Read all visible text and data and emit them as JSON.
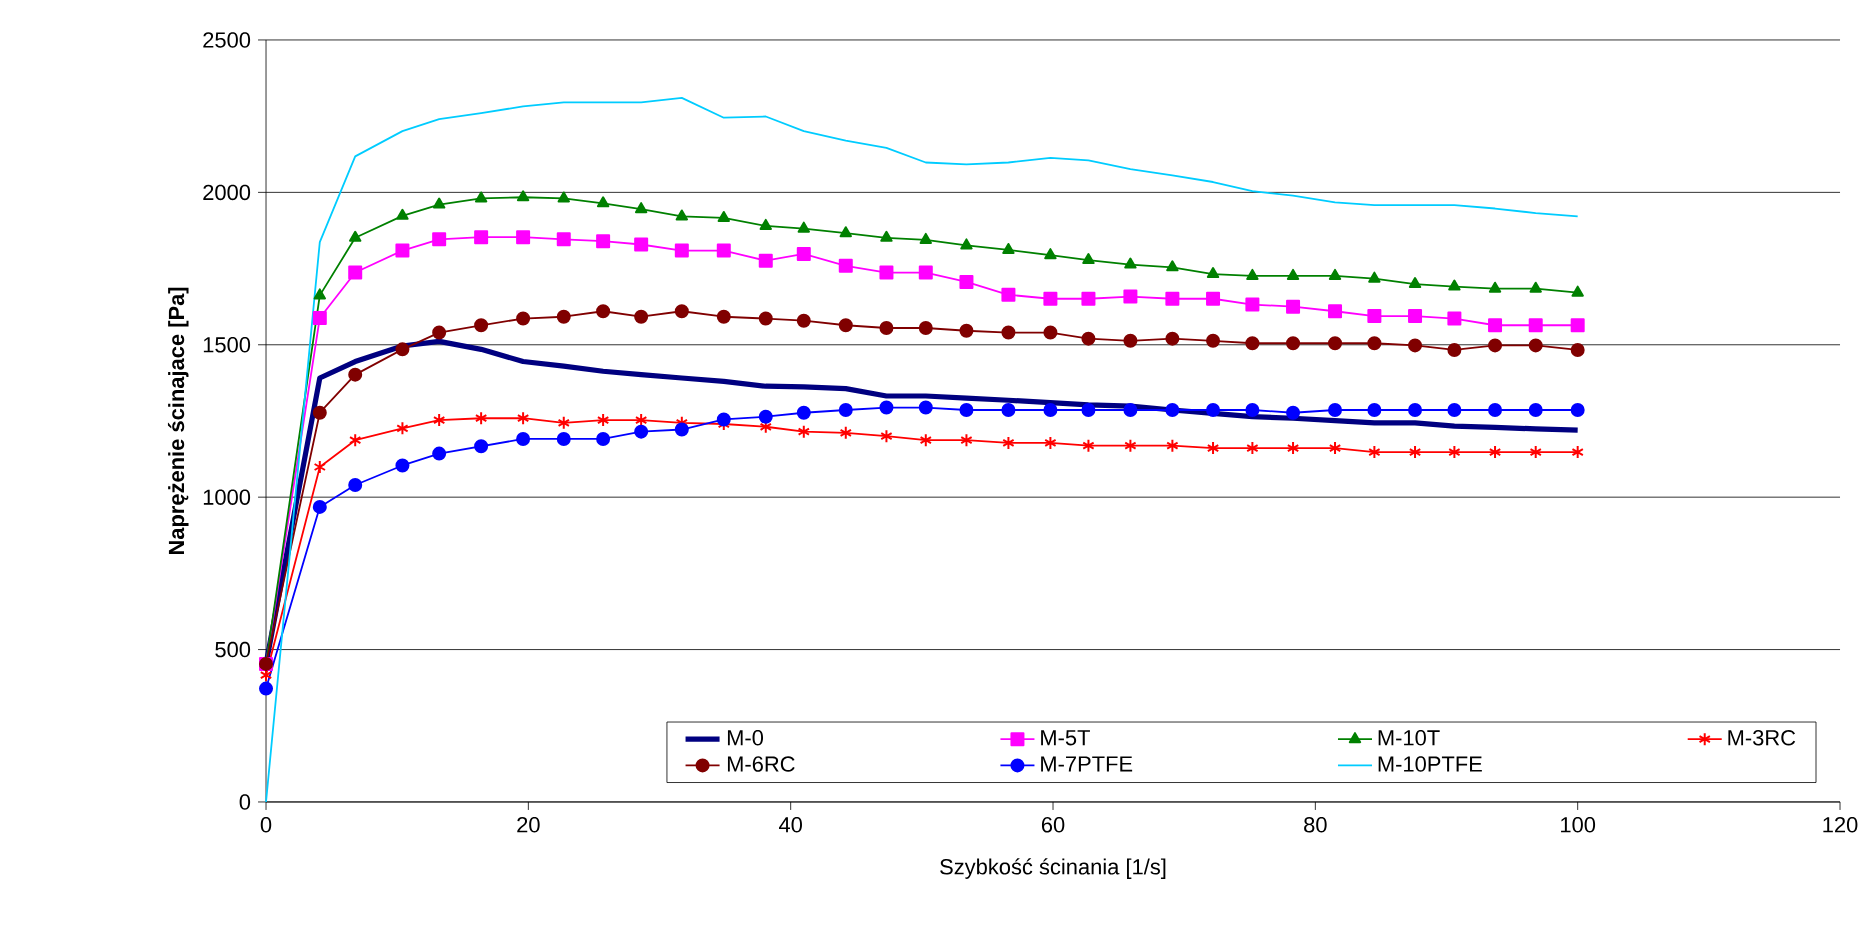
{
  "chart_data": {
    "type": "line",
    "xlabel": "Szybkość ścinania [1/s]",
    "ylabel": "Naprężenie ścinajace [Pa]",
    "x": [
      0,
      4.1,
      6.8,
      10.4,
      13.2,
      16.4,
      19.6,
      22.7,
      25.7,
      28.6,
      31.7,
      34.9,
      38.1,
      41.0,
      44.2,
      47.3,
      50.3,
      53.4,
      56.6,
      59.8,
      62.7,
      65.9,
      69.1,
      72.2,
      75.2,
      78.3,
      81.5,
      84.5,
      87.6,
      90.6,
      93.7,
      96.8,
      100
    ],
    "xlim": [
      0,
      120
    ],
    "xticks": [
      0,
      20,
      40,
      60,
      80,
      100,
      120
    ],
    "ylim": [
      0,
      2500
    ],
    "yticks": [
      0,
      500,
      1000,
      1500,
      2000,
      2500
    ],
    "grid": "y",
    "legend": "bottom right",
    "line_style": "solid",
    "series": [
      {
        "name": "M-0",
        "color": "#000080",
        "marker": "none",
        "values": [
          453,
          1391,
          1445,
          1496,
          1511,
          1485,
          1445,
          1430,
          1413,
          1402,
          1391,
          1380,
          1364,
          1362,
          1356,
          1332,
          1332,
          1325,
          1318,
          1310,
          1303,
          1299,
          1286,
          1275,
          1264,
          1259,
          1251,
          1244,
          1244,
          1233,
          1229,
          1224,
          1220
        ]
      },
      {
        "name": "M-5T",
        "color": "#ff00ff",
        "marker": "square",
        "values": [
          453,
          1588,
          1737,
          1809,
          1846,
          1853,
          1853,
          1846,
          1840,
          1829,
          1809,
          1809,
          1776,
          1798,
          1759,
          1737,
          1737,
          1706,
          1664,
          1651,
          1651,
          1658,
          1651,
          1651,
          1632,
          1625,
          1610,
          1594,
          1594,
          1586,
          1564,
          1564,
          1564
        ]
      },
      {
        "name": "M-10T",
        "color": "#008000",
        "marker": "triangle",
        "values": [
          453,
          1662,
          1851,
          1923,
          1960,
          1980,
          1984,
          1980,
          1964,
          1945,
          1921,
          1916,
          1890,
          1881,
          1866,
          1851,
          1844,
          1826,
          1811,
          1794,
          1778,
          1763,
          1754,
          1732,
          1726,
          1726,
          1726,
          1717,
          1699,
          1691,
          1684,
          1684,
          1671
        ]
      },
      {
        "name": "M-3RC",
        "color": "#ff0000",
        "marker": "cross",
        "values": [
          416,
          1099,
          1187,
          1226,
          1253,
          1259,
          1259,
          1244,
          1253,
          1253,
          1244,
          1240,
          1231,
          1215,
          1211,
          1200,
          1187,
          1187,
          1178,
          1178,
          1169,
          1169,
          1169,
          1161,
          1161,
          1161,
          1161,
          1148,
          1148,
          1148,
          1148,
          1148,
          1148
        ]
      },
      {
        "name": "M-6RC",
        "color": "#800000",
        "marker": "circle",
        "values": [
          453,
          1277,
          1402,
          1485,
          1540,
          1564,
          1586,
          1592,
          1610,
          1592,
          1610,
          1592,
          1586,
          1579,
          1564,
          1555,
          1555,
          1546,
          1540,
          1540,
          1520,
          1513,
          1520,
          1513,
          1505,
          1505,
          1505,
          1505,
          1498,
          1483,
          1498,
          1498,
          1483
        ]
      },
      {
        "name": "M-7PTFE",
        "color": "#0000ff",
        "marker": "circle",
        "values": [
          372,
          968,
          1040,
          1104,
          1143,
          1167,
          1191,
          1191,
          1191,
          1215,
          1222,
          1255,
          1264,
          1277,
          1286,
          1294,
          1294,
          1286,
          1286,
          1286,
          1286,
          1286,
          1286,
          1286,
          1286,
          1277,
          1286,
          1286,
          1286,
          1286,
          1286,
          1286,
          1286
        ]
      },
      {
        "name": "M-10PTFE",
        "color": "#00ccff",
        "marker": "none",
        "values": [
          0,
          1837,
          2118,
          2201,
          2240,
          2260,
          2282,
          2295,
          2295,
          2295,
          2310,
          2245,
          2249,
          2201,
          2170,
          2146,
          2098,
          2092,
          2098,
          2113,
          2105,
          2076,
          2056,
          2034,
          2004,
          1989,
          1967,
          1958,
          1958,
          1958,
          1947,
          1932,
          1921
        ]
      }
    ]
  }
}
